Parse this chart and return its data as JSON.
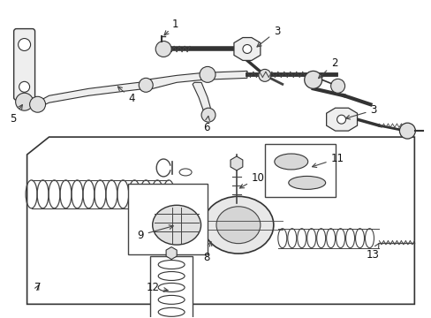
{
  "bg": "#ffffff",
  "lw": 1.0,
  "gray": "#444444",
  "lightgray": "#bbbbbb",
  "darkgray": "#333333"
}
